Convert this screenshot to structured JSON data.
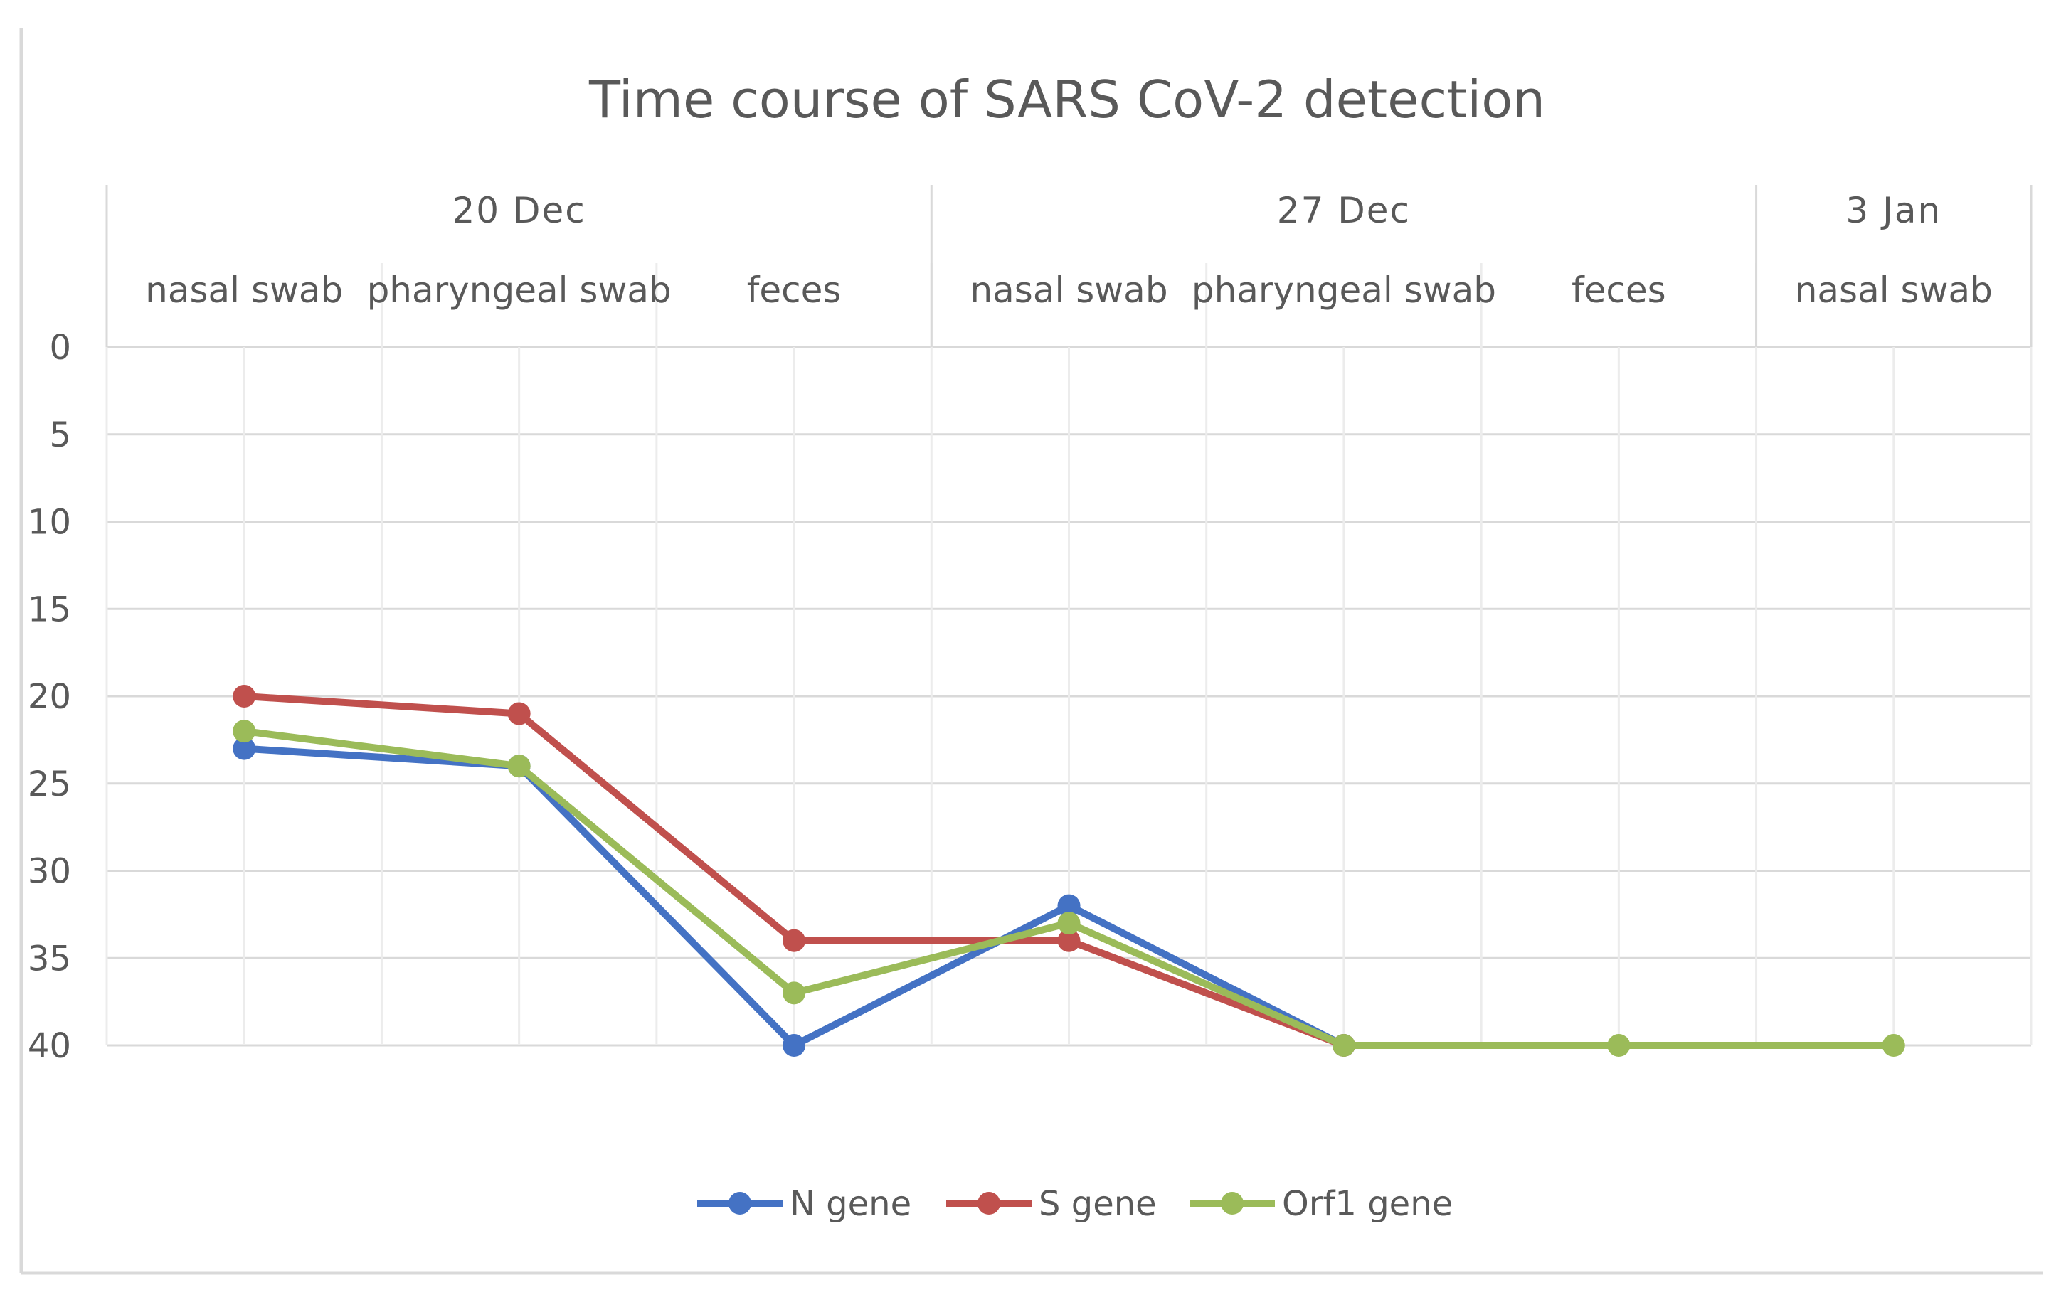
{
  "chart_data": {
    "type": "line",
    "title": "Time course of SARS CoV-2 detection",
    "groups": [
      {
        "label": "20  Dec",
        "categories": [
          "nasal swab",
          "pharyngeal swab",
          "feces"
        ]
      },
      {
        "label": "27  Dec",
        "categories": [
          "nasal swab",
          "pharyngeal swab",
          "feces"
        ]
      },
      {
        "label": "3  Jan",
        "categories": [
          "nasal swab"
        ]
      }
    ],
    "categories": [
      "nasal swab",
      "pharyngeal swab",
      "feces",
      "nasal swab",
      "pharyngeal swab",
      "feces",
      "nasal swab"
    ],
    "y_axis": {
      "min": 0,
      "max": 40,
      "step": 5,
      "reversed": true
    },
    "y_ticks": [
      "0",
      "5",
      "10",
      "15",
      "20",
      "25",
      "30",
      "35",
      "40"
    ],
    "grid": true,
    "legend_position": "bottom",
    "series": [
      {
        "name": "N gene",
        "color": "#4472C4",
        "values": [
          23,
          24,
          40,
          32,
          40,
          null,
          null
        ]
      },
      {
        "name": "S gene",
        "color": "#C0504D",
        "values": [
          20,
          21,
          34,
          34,
          40,
          null,
          null
        ]
      },
      {
        "name": "Orf1 gene",
        "color": "#9BBB59",
        "values": [
          22,
          24,
          37,
          33,
          40,
          40,
          40
        ]
      }
    ]
  }
}
